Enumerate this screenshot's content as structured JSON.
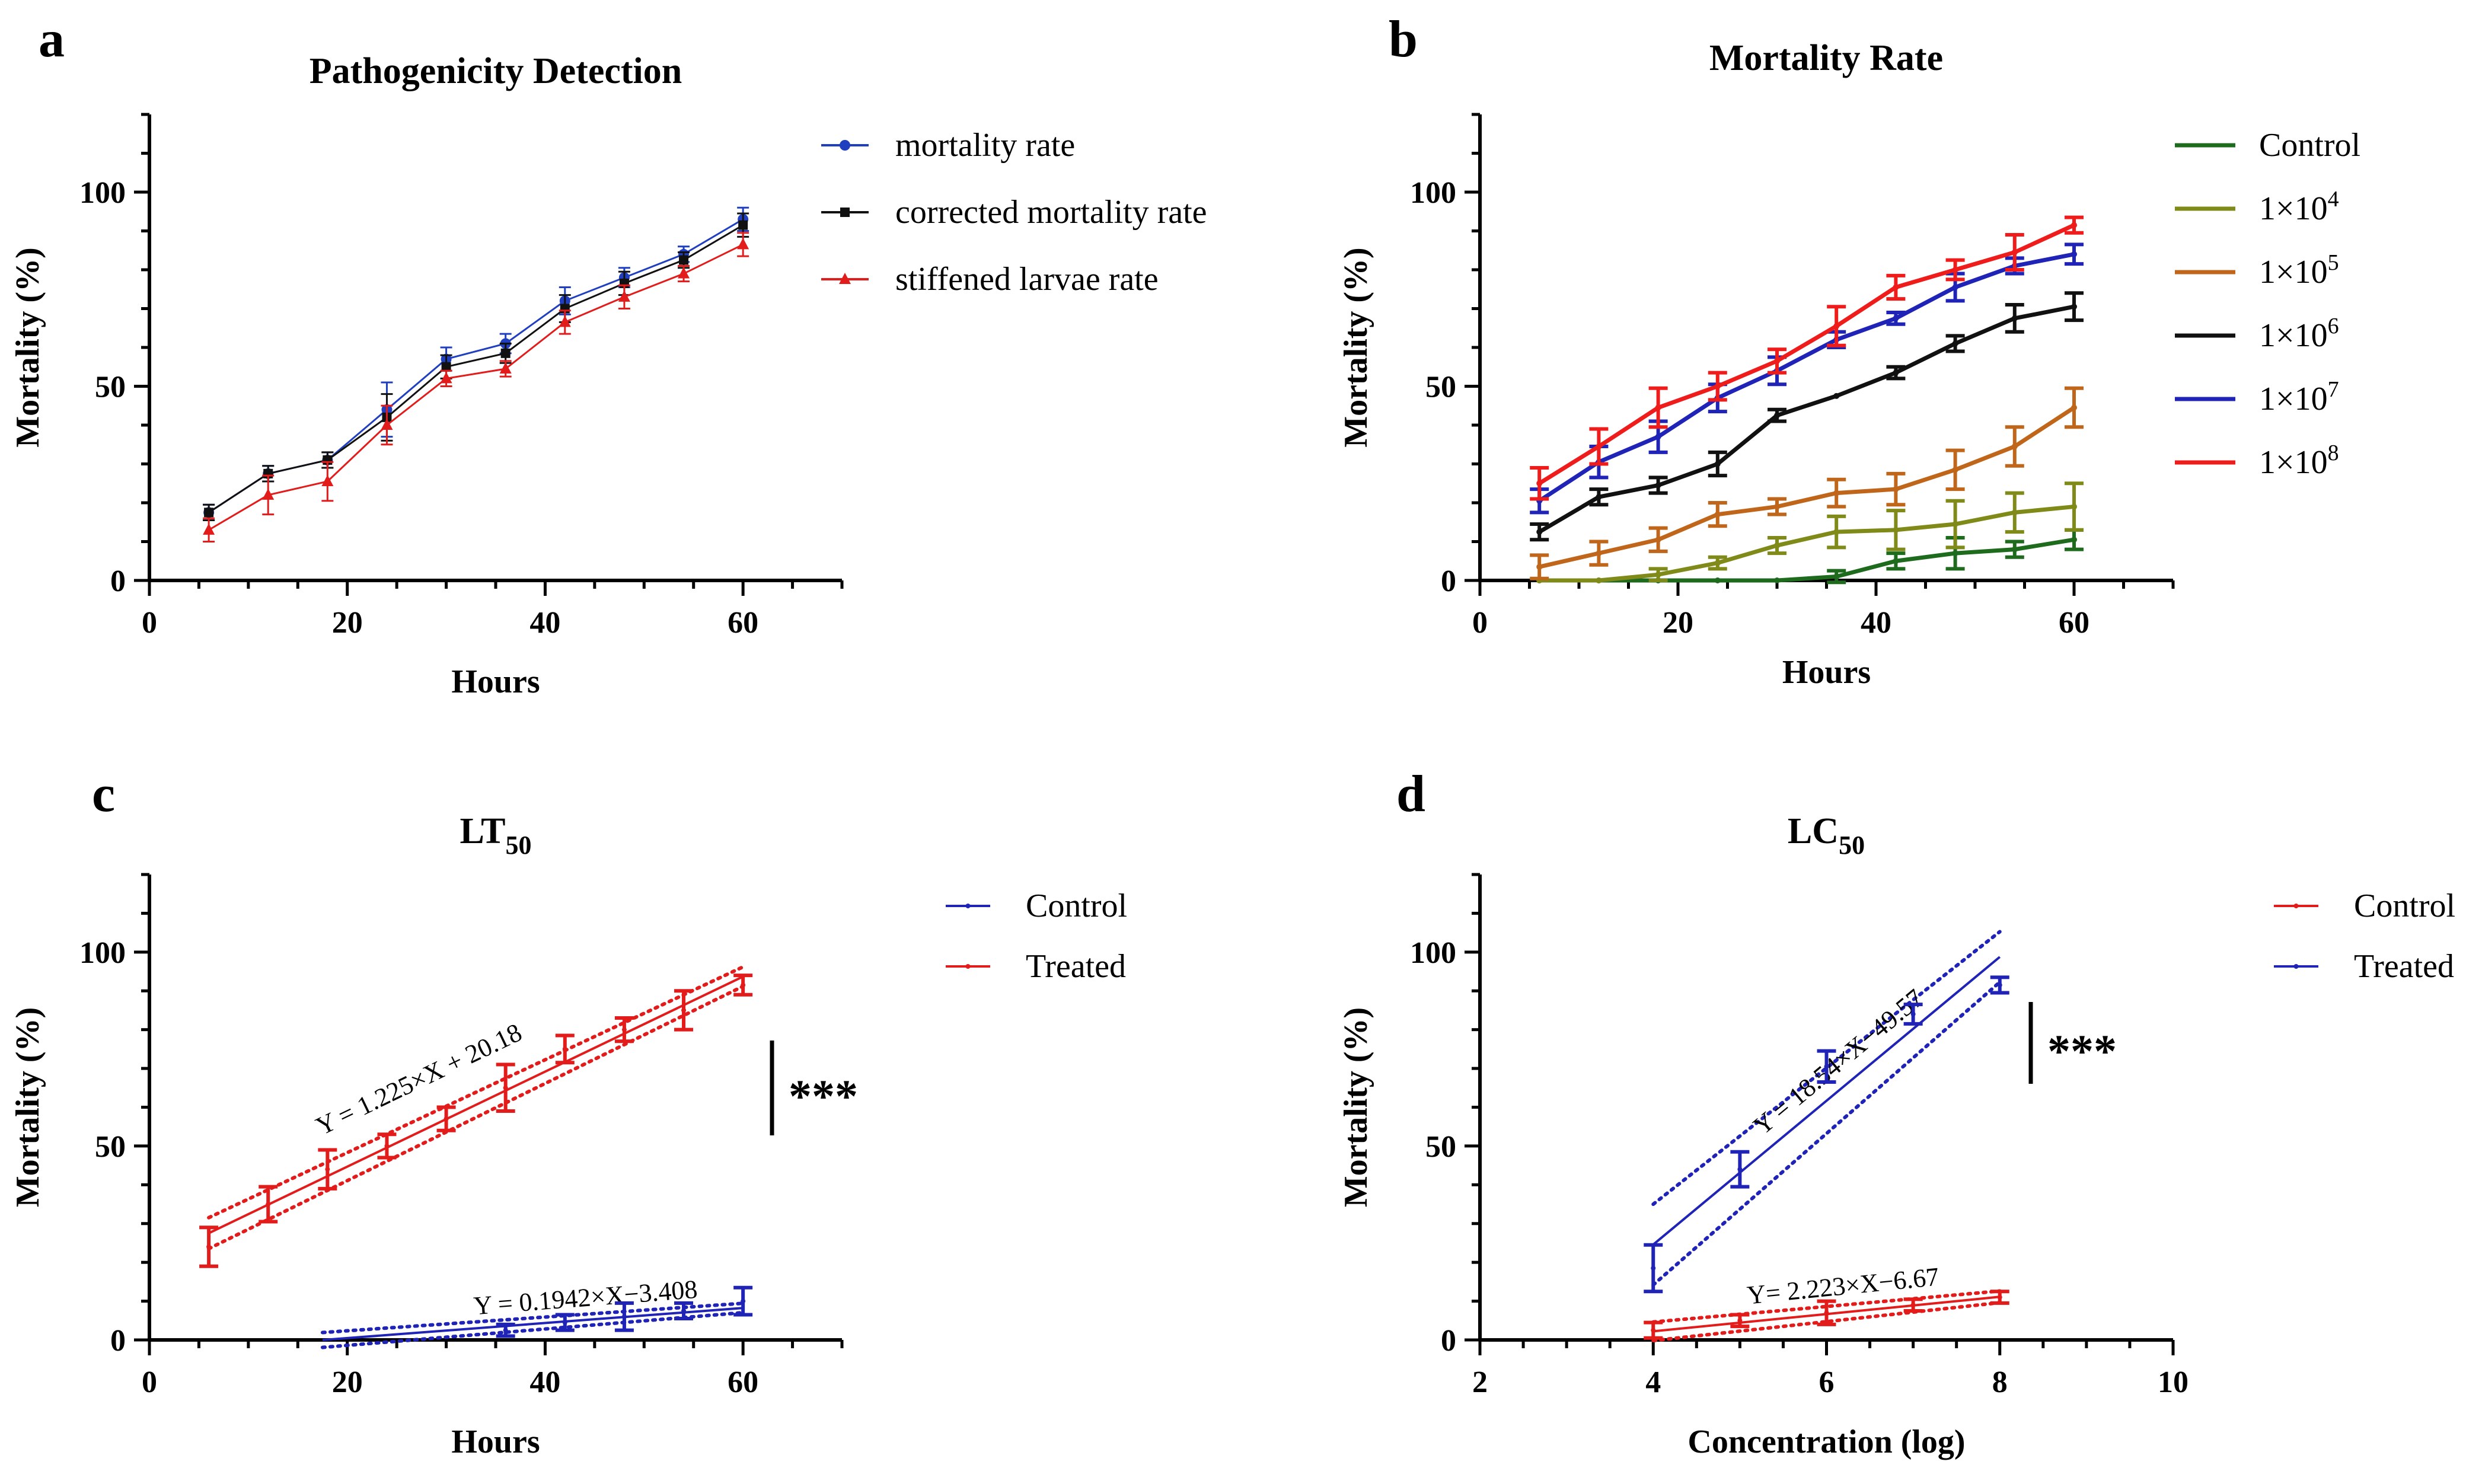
{
  "chart_data": [
    {
      "panel": "a",
      "type": "line",
      "title": "Pathogenicity Detection",
      "xlabel": "Hours",
      "ylabel": "Mortality (%)",
      "xlim": [
        0,
        70
      ],
      "ylim": [
        0,
        120
      ],
      "xticks": [
        0,
        20,
        40,
        60
      ],
      "yticks": [
        0,
        50,
        100
      ],
      "x": [
        6,
        12,
        18,
        24,
        30,
        36,
        42,
        48,
        54,
        60
      ],
      "legend_position": "top-right",
      "series": [
        {
          "name": "mortality rate",
          "color": "#1f3fbf",
          "marker": "circle",
          "values": [
            17.5,
            27.5,
            31,
            44,
            57,
            61,
            72,
            78,
            84,
            93
          ],
          "errors": [
            2,
            2,
            2,
            7,
            3,
            2.5,
            3.5,
            2.5,
            2,
            3
          ]
        },
        {
          "name": "corrected mortality rate",
          "color": "#111111",
          "marker": "square",
          "values": [
            17.5,
            27.5,
            31,
            42,
            55,
            58.5,
            70,
            76.5,
            82.5,
            91.5
          ],
          "errors": [
            2,
            2,
            2,
            6,
            3,
            2.5,
            3.5,
            3,
            2,
            3
          ]
        },
        {
          "name": "stiffened larvae rate",
          "color": "#e21b1b",
          "marker": "triangle",
          "values": [
            13,
            22,
            25.5,
            40,
            52,
            54.5,
            66.5,
            73,
            79,
            86.5
          ],
          "errors": [
            3,
            5,
            5,
            5,
            2,
            2,
            3,
            3,
            2,
            3
          ]
        }
      ]
    },
    {
      "panel": "b",
      "type": "line",
      "title": "Mortality Rate",
      "xlabel": "Hours",
      "ylabel": "Mortality (%)",
      "xlim": [
        0,
        70
      ],
      "ylim": [
        0,
        120
      ],
      "xticks": [
        0,
        20,
        40,
        60
      ],
      "yticks": [
        0,
        50,
        100
      ],
      "x": [
        6,
        12,
        18,
        24,
        30,
        36,
        42,
        48,
        54,
        60
      ],
      "legend_position": "top-right",
      "series": [
        {
          "name": "Control",
          "label_base": "Control",
          "label_exp": "",
          "color": "#1e6b1e",
          "values": [
            0,
            0,
            0,
            0,
            0,
            1,
            5,
            7,
            8,
            10.5
          ],
          "errors": [
            0,
            0,
            0,
            0,
            0,
            1.5,
            2,
            4,
            2,
            2.5
          ]
        },
        {
          "name": "1×10^4",
          "label_base": "1×10",
          "label_exp": "4",
          "color": "#7f8a19",
          "values": [
            0,
            0,
            1.5,
            4.5,
            9,
            12.5,
            13,
            14.5,
            17.5,
            19
          ],
          "errors": [
            0,
            0,
            1.5,
            1.5,
            2,
            4,
            5,
            6,
            5,
            6
          ]
        },
        {
          "name": "1×10^5",
          "label_base": "1×10",
          "label_exp": "5",
          "color": "#c0661b",
          "values": [
            3.5,
            7,
            10.5,
            17,
            19,
            22.5,
            23.5,
            28.5,
            34.5,
            44.5
          ],
          "errors": [
            3,
            3,
            3,
            3,
            2,
            3.5,
            4,
            5,
            5,
            5
          ]
        },
        {
          "name": "1×10^6",
          "label_base": "1×10",
          "label_exp": "6",
          "color": "#111111",
          "values": [
            12.5,
            21.5,
            24.5,
            30,
            42.5,
            47.5,
            53.5,
            61,
            67.5,
            70.5
          ],
          "errors": [
            2,
            2,
            2,
            3,
            1.5,
            0,
            1.5,
            2,
            3.5,
            3.5
          ]
        },
        {
          "name": "1×10^7",
          "label_base": "1×10",
          "label_exp": "7",
          "color": "#1f23b6",
          "values": [
            20.5,
            30.5,
            37,
            47,
            54,
            62,
            67.5,
            75.5,
            81,
            84
          ],
          "errors": [
            3,
            4,
            4,
            3.5,
            3.5,
            2,
            1.5,
            3.5,
            2,
            2.5
          ]
        },
        {
          "name": "1×10^8",
          "label_base": "1×10",
          "label_exp": "8",
          "color": "#ef1c1c",
          "values": [
            25,
            34.5,
            44.5,
            50,
            56.5,
            65.5,
            75.5,
            80,
            84.5,
            91.5
          ],
          "errors": [
            4,
            4.5,
            5,
            3.5,
            3,
            5,
            3,
            2.5,
            4.5,
            2
          ]
        }
      ]
    },
    {
      "panel": "c",
      "type": "scatter",
      "title": "LT",
      "title_sub": "50",
      "xlabel": "Hours",
      "ylabel": "Mortality (%)",
      "xlim": [
        0,
        70
      ],
      "ylim": [
        0,
        120
      ],
      "xticks": [
        0,
        20,
        40,
        60
      ],
      "yticks": [
        0,
        50,
        100
      ],
      "legend_position": "top-right",
      "significance": "***",
      "series": [
        {
          "name": "Control",
          "color": "#1f23b6",
          "x": [
            36,
            42,
            48,
            54,
            60
          ],
          "values": [
            2.5,
            4.5,
            6,
            7.5,
            10
          ],
          "errors": [
            1.5,
            2,
            3.5,
            2,
            3.5
          ],
          "fit": {
            "slope": 0.1942,
            "intercept": -3.408,
            "x_range": [
              17.5,
              60
            ],
            "band": 1.2,
            "equation": "Y = 0.1942×X−3.408"
          }
        },
        {
          "name": "Treated",
          "color": "#e21b1b",
          "x": [
            6,
            12,
            18,
            24,
            30,
            36,
            42,
            48,
            54,
            60
          ],
          "values": [
            24,
            35,
            44,
            50,
            57,
            65,
            75,
            80,
            85,
            91.5
          ],
          "errors": [
            5,
            4.5,
            5,
            3,
            3,
            6,
            3.5,
            3,
            5,
            2.5
          ],
          "fit": {
            "slope": 1.225,
            "intercept": 20.18,
            "x_range": [
              6,
              60
            ],
            "band": 2.5,
            "equation": "Y = 1.225×X + 20.18"
          }
        }
      ]
    },
    {
      "panel": "d",
      "type": "scatter",
      "title": "LC",
      "title_sub": "50",
      "xlabel": "Concentration (log)",
      "ylabel": "Mortality (%)",
      "xlim": [
        2,
        10
      ],
      "ylim": [
        0,
        120
      ],
      "xticks": [
        2,
        4,
        6,
        8,
        10
      ],
      "yticks": [
        0,
        50,
        100
      ],
      "legend_position": "top-right",
      "significance": "***",
      "series": [
        {
          "name": "Control",
          "color": "#e21b1b",
          "x": [
            4,
            5,
            6,
            7,
            8
          ],
          "values": [
            2.5,
            5,
            7,
            9,
            11
          ],
          "errors": [
            2,
            1.5,
            3,
            1.5,
            1.5
          ],
          "fit": {
            "slope": 2.223,
            "intercept": -6.67,
            "x_range": [
              4,
              8
            ],
            "band": 1.5,
            "equation": "Y= 2.223×X−6.67"
          }
        },
        {
          "name": "Treated",
          "color": "#1f23b6",
          "x": [
            4,
            5,
            6,
            7,
            8
          ],
          "values": [
            18.5,
            44,
            70.5,
            84,
            91.5
          ],
          "errors": [
            6,
            4.5,
            4,
            2.5,
            2
          ],
          "fit": {
            "slope": 18.54,
            "intercept": -49.57,
            "x_range": [
              4,
              8
            ],
            "band": 6.5,
            "equation": "Y = 18.54×X−49.57"
          }
        }
      ]
    }
  ]
}
